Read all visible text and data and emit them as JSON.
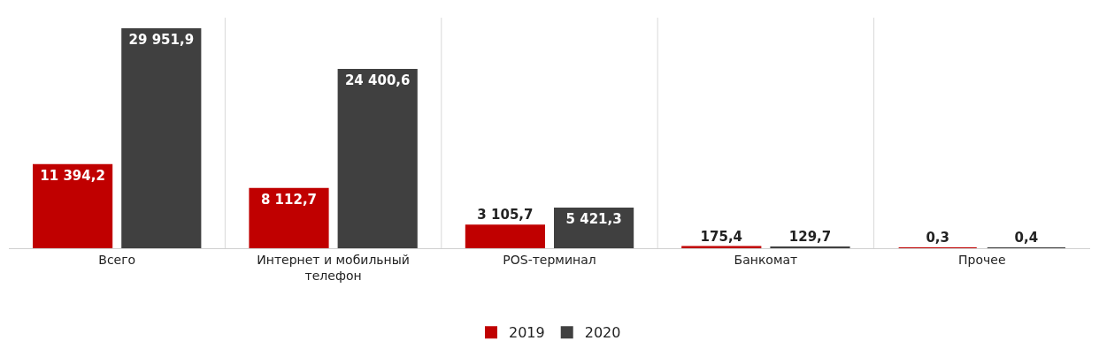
{
  "chart_data": {
    "type": "bar",
    "categories": [
      "Всего",
      "Интернет и мобильный телефон",
      "POS-терминал",
      "Банкомат",
      "Прочее"
    ],
    "series": [
      {
        "name": "2019",
        "color": "#c00000",
        "values": [
          11394.2,
          8112.7,
          3105.7,
          175.4,
          0.3
        ],
        "value_labels": [
          "11 394,2",
          "8 112,7",
          "3 105,7",
          "175,4",
          "0,3"
        ]
      },
      {
        "name": "2020",
        "color": "#404040",
        "values": [
          29951.9,
          24400.6,
          5421.3,
          129.7,
          0.4
        ],
        "value_labels": [
          "29 951,9",
          "24 400,6",
          "5 421,3",
          "129,7",
          "0,4"
        ]
      }
    ],
    "legend": "bottom"
  }
}
